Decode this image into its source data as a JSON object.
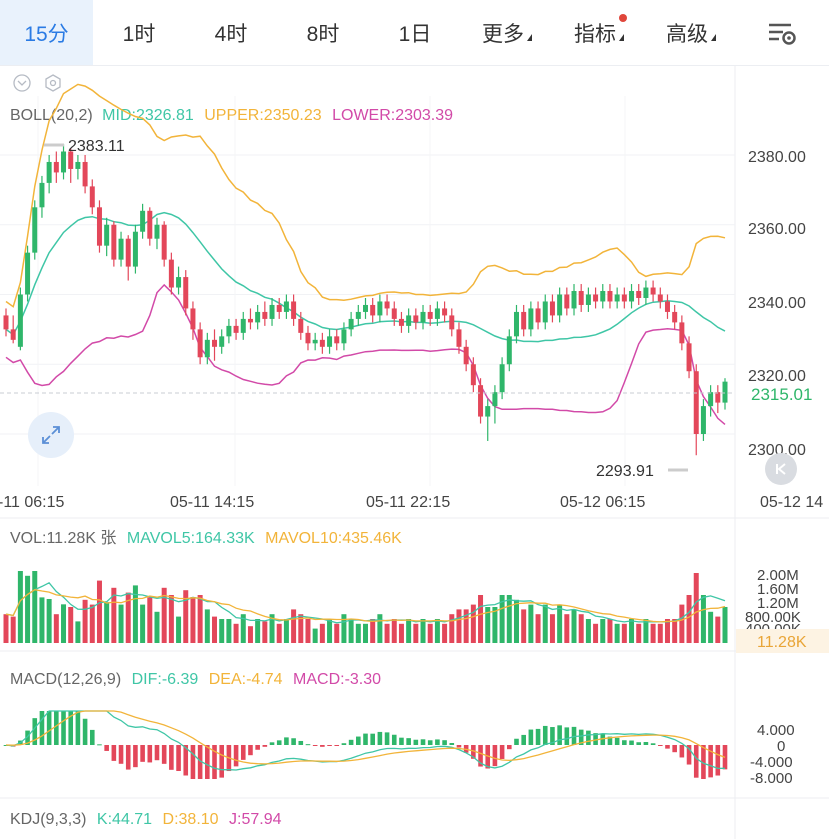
{
  "tabs": [
    {
      "label": "15分",
      "active": true
    },
    {
      "label": "1时"
    },
    {
      "label": "4时"
    },
    {
      "label": "8时"
    },
    {
      "label": "1日"
    },
    {
      "label": "更多",
      "dropdown": true
    },
    {
      "label": "指标",
      "dropdown": true,
      "dot": true
    },
    {
      "label": "高级",
      "dropdown": true
    }
  ],
  "boll": {
    "name": "BOLL(20,2)",
    "mid": "MID:2326.81",
    "upper": "UPPER:2350.23",
    "lower": "LOWER:2303.39"
  },
  "price_axis": {
    "ticks": [
      "2380.00",
      "2360.00",
      "2340.00",
      "2320.00",
      "2300.00"
    ],
    "current": "2315.01"
  },
  "annotations": {
    "high": "2383.11",
    "low": "2293.91"
  },
  "time_axis": [
    "-11 06:15",
    "05-11 14:15",
    "05-11 22:15",
    "05-12 06:15",
    "05-12 14"
  ],
  "vol": {
    "name": "VOL:11.28K 张",
    "mavol5": "MAVOL5:164.33K",
    "mavol10": "MAVOL10:435.46K",
    "ticks": [
      "2.00M",
      "1.60M",
      "1.20M",
      "800.00K",
      "400.00K"
    ],
    "current": "11.28K"
  },
  "macd": {
    "name": "MACD(12,26,9)",
    "dif": "DIF:-6.39",
    "dea": "DEA:-4.74",
    "macd": "MACD:-3.30",
    "ticks": [
      "4.000",
      "0",
      "-4.000",
      "-8.000"
    ]
  },
  "kdj": {
    "name": "KDJ(9,3,3)",
    "k": "K:44.71",
    "d": "D:38.10",
    "j": "J:57.94"
  },
  "colors": {
    "up": "#2fb66a",
    "down": "#e3475a",
    "mid": "#3fc6a6",
    "upper": "#f2b43a",
    "lower": "#d24aa8",
    "active_tab": "#2a7be4"
  },
  "chart_data": {
    "type": "candlestick",
    "candles": [
      [
        2334,
        2330,
        2336,
        2328
      ],
      [
        2330,
        2327,
        2334,
        2326
      ],
      [
        2325,
        2340,
        2342,
        2324
      ],
      [
        2340,
        2352,
        2354,
        2338
      ],
      [
        2352,
        2365,
        2367,
        2350
      ],
      [
        2365,
        2372,
        2374,
        2362
      ],
      [
        2372,
        2378,
        2380,
        2369
      ],
      [
        2378,
        2375,
        2381,
        2372
      ],
      [
        2375,
        2381,
        2383.11,
        2373
      ],
      [
        2381,
        2376,
        2382,
        2372
      ],
      [
        2376,
        2378,
        2380,
        2373
      ],
      [
        2378,
        2371,
        2380,
        2369
      ],
      [
        2371,
        2365,
        2373,
        2363
      ],
      [
        2365,
        2354,
        2367,
        2352
      ],
      [
        2354,
        2360,
        2362,
        2351
      ],
      [
        2360,
        2350,
        2361,
        2348
      ],
      [
        2350,
        2356,
        2358,
        2348
      ],
      [
        2356,
        2348,
        2357,
        2344
      ],
      [
        2348,
        2358,
        2360,
        2346
      ],
      [
        2358,
        2364,
        2366,
        2356
      ],
      [
        2364,
        2356,
        2365,
        2354
      ],
      [
        2356,
        2360,
        2362,
        2353
      ],
      [
        2360,
        2350,
        2361,
        2348
      ],
      [
        2350,
        2342,
        2352,
        2340
      ],
      [
        2342,
        2345,
        2348,
        2340
      ],
      [
        2345,
        2336,
        2347,
        2334
      ],
      [
        2336,
        2330,
        2338,
        2327
      ],
      [
        2330,
        2322,
        2332,
        2320
      ],
      [
        2322,
        2327,
        2329,
        2320
      ],
      [
        2327,
        2325,
        2330,
        2321
      ],
      [
        2325,
        2328,
        2330,
        2323
      ],
      [
        2328,
        2331,
        2333,
        2326
      ],
      [
        2331,
        2329,
        2333,
        2327
      ],
      [
        2329,
        2333,
        2335,
        2327
      ],
      [
        2333,
        2332,
        2336,
        2330
      ],
      [
        2332,
        2335,
        2337,
        2330
      ],
      [
        2335,
        2333,
        2338,
        2331
      ],
      [
        2333,
        2337,
        2339,
        2331
      ],
      [
        2337,
        2335,
        2339,
        2333
      ],
      [
        2335,
        2338,
        2340,
        2333
      ],
      [
        2338,
        2333,
        2340,
        2331
      ],
      [
        2333,
        2329,
        2335,
        2327
      ],
      [
        2329,
        2326,
        2331,
        2324
      ],
      [
        2326,
        2327,
        2329,
        2324
      ],
      [
        2327,
        2325,
        2329,
        2323
      ],
      [
        2325,
        2328,
        2330,
        2323
      ],
      [
        2328,
        2326,
        2330,
        2324
      ],
      [
        2326,
        2330,
        2332,
        2324
      ],
      [
        2330,
        2333,
        2335,
        2328
      ],
      [
        2333,
        2335,
        2337,
        2331
      ],
      [
        2335,
        2337,
        2339,
        2333
      ],
      [
        2337,
        2334,
        2339,
        2332
      ],
      [
        2334,
        2338,
        2340,
        2332
      ],
      [
        2338,
        2336,
        2340,
        2334
      ],
      [
        2336,
        2333,
        2338,
        2331
      ],
      [
        2333,
        2331,
        2335,
        2329
      ],
      [
        2331,
        2334,
        2336,
        2329
      ],
      [
        2334,
        2332,
        2336,
        2330
      ],
      [
        2332,
        2335,
        2337,
        2330
      ],
      [
        2335,
        2333,
        2337,
        2331
      ],
      [
        2333,
        2336,
        2338,
        2331
      ],
      [
        2336,
        2334,
        2338,
        2332
      ],
      [
        2334,
        2330,
        2336,
        2328
      ],
      [
        2330,
        2325,
        2332,
        2323
      ],
      [
        2325,
        2320,
        2327,
        2318
      ],
      [
        2320,
        2314,
        2322,
        2312
      ],
      [
        2314,
        2305,
        2316,
        2303
      ],
      [
        2305,
        2308,
        2310,
        2298
      ],
      [
        2308,
        2312,
        2314,
        2303
      ],
      [
        2312,
        2320,
        2322,
        2310
      ],
      [
        2320,
        2328,
        2330,
        2318
      ],
      [
        2328,
        2335,
        2337,
        2326
      ],
      [
        2335,
        2330,
        2337,
        2328
      ],
      [
        2330,
        2336,
        2338,
        2328
      ],
      [
        2336,
        2332,
        2338,
        2330
      ],
      [
        2332,
        2338,
        2340,
        2330
      ],
      [
        2338,
        2334,
        2340,
        2332
      ],
      [
        2334,
        2340,
        2342,
        2332
      ],
      [
        2340,
        2336,
        2342,
        2334
      ],
      [
        2336,
        2341,
        2343,
        2334
      ],
      [
        2341,
        2337,
        2343,
        2335
      ],
      [
        2337,
        2340,
        2342,
        2335
      ],
      [
        2340,
        2338,
        2342,
        2336
      ],
      [
        2338,
        2341,
        2343,
        2336
      ],
      [
        2341,
        2338,
        2343,
        2336
      ],
      [
        2338,
        2340,
        2342,
        2336
      ],
      [
        2340,
        2338,
        2342,
        2336
      ],
      [
        2338,
        2341,
        2343,
        2336
      ],
      [
        2341,
        2339,
        2343,
        2337
      ],
      [
        2339,
        2342,
        2344,
        2337
      ],
      [
        2342,
        2340,
        2344,
        2338
      ],
      [
        2340,
        2338,
        2342,
        2336
      ],
      [
        2338,
        2335,
        2340,
        2333
      ],
      [
        2335,
        2332,
        2337,
        2330
      ],
      [
        2332,
        2326,
        2334,
        2324
      ],
      [
        2326,
        2318,
        2328,
        2316
      ],
      [
        2318,
        2300,
        2320,
        2293.91
      ],
      [
        2300,
        2308,
        2310,
        2298
      ],
      [
        2308,
        2312,
        2314,
        2305
      ],
      [
        2312,
        2309,
        2314,
        2306
      ],
      [
        2309,
        2315.01,
        2316,
        2307
      ]
    ]
  }
}
